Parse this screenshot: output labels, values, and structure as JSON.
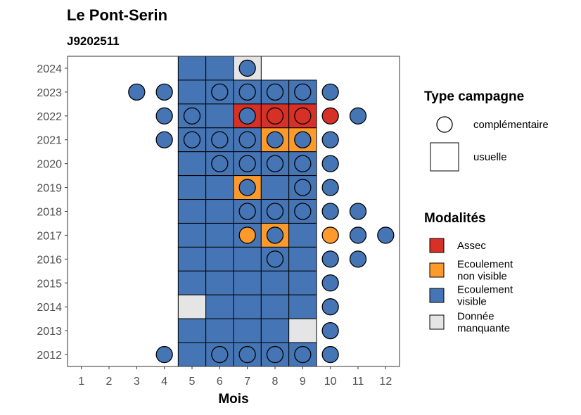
{
  "chart_data": {
    "type": "heatmap",
    "title": "Le Pont-Serin",
    "subtitle": "J9202511",
    "xlabel": "Mois",
    "ylabel": "",
    "x_ticks": [
      "1",
      "2",
      "3",
      "4",
      "5",
      "6",
      "7",
      "8",
      "9",
      "10",
      "11",
      "12"
    ],
    "y_ticks": [
      "2012",
      "2013",
      "2014",
      "2015",
      "2016",
      "2017",
      "2018",
      "2019",
      "2020",
      "2021",
      "2022",
      "2023",
      "2024"
    ],
    "xlim": [
      0.5,
      12.5
    ],
    "ylim": [
      2011.5,
      2024.5
    ],
    "grid": false,
    "colors": {
      "Assec": "#d73027",
      "Ecoulement non visible": "#fd9a2b",
      "Ecoulement visible": "#4575b4",
      "Donnée manquante": "#e5e5e5"
    },
    "legend": {
      "shape_title": "Type campagne",
      "shape_items": [
        {
          "label": "complémentaire",
          "shape": "circle"
        },
        {
          "label": "usuelle",
          "shape": "square"
        }
      ],
      "color_title": "Modalités",
      "color_items": [
        {
          "key": "Assec",
          "lines": [
            "Assec"
          ]
        },
        {
          "key": "Ecoulement non visible",
          "lines": [
            "Ecoulement",
            "non visible"
          ]
        },
        {
          "key": "Ecoulement visible",
          "lines": [
            "Ecoulement",
            "visible"
          ]
        },
        {
          "key": "Donnée manquante",
          "lines": [
            "Donnée",
            "manquante"
          ]
        }
      ],
      "position": "right"
    },
    "usuelle": [
      {
        "year": 2024,
        "values": {
          "5": "Ecoulement visible",
          "6": "Ecoulement visible",
          "7": "Donnée manquante"
        }
      },
      {
        "year": 2023,
        "values": {
          "5": "Ecoulement visible",
          "6": "Ecoulement visible",
          "7": "Ecoulement visible",
          "8": "Ecoulement visible",
          "9": "Ecoulement visible"
        }
      },
      {
        "year": 2022,
        "values": {
          "5": "Ecoulement visible",
          "6": "Ecoulement visible",
          "7": "Assec",
          "8": "Assec",
          "9": "Assec"
        }
      },
      {
        "year": 2021,
        "values": {
          "5": "Ecoulement visible",
          "6": "Ecoulement visible",
          "7": "Ecoulement visible",
          "8": "Ecoulement non visible",
          "9": "Ecoulement non visible"
        }
      },
      {
        "year": 2020,
        "values": {
          "5": "Ecoulement visible",
          "6": "Ecoulement visible",
          "7": "Ecoulement visible",
          "8": "Ecoulement visible",
          "9": "Ecoulement visible"
        }
      },
      {
        "year": 2019,
        "values": {
          "5": "Ecoulement visible",
          "6": "Ecoulement visible",
          "7": "Ecoulement non visible",
          "8": "Ecoulement visible",
          "9": "Ecoulement visible"
        }
      },
      {
        "year": 2018,
        "values": {
          "5": "Ecoulement visible",
          "6": "Ecoulement visible",
          "7": "Ecoulement visible",
          "8": "Ecoulement visible",
          "9": "Ecoulement visible"
        }
      },
      {
        "year": 2017,
        "values": {
          "5": "Ecoulement visible",
          "6": "Ecoulement visible",
          "7": "Ecoulement visible",
          "8": "Ecoulement non visible",
          "9": "Ecoulement visible"
        }
      },
      {
        "year": 2016,
        "values": {
          "5": "Ecoulement visible",
          "6": "Ecoulement visible",
          "7": "Ecoulement visible",
          "8": "Ecoulement visible",
          "9": "Ecoulement visible"
        }
      },
      {
        "year": 2015,
        "values": {
          "5": "Ecoulement visible",
          "6": "Ecoulement visible",
          "7": "Ecoulement visible",
          "8": "Ecoulement visible",
          "9": "Ecoulement visible"
        }
      },
      {
        "year": 2014,
        "values": {
          "5": "Donnée manquante",
          "6": "Ecoulement visible",
          "7": "Ecoulement visible",
          "8": "Ecoulement visible",
          "9": "Ecoulement visible"
        }
      },
      {
        "year": 2013,
        "values": {
          "5": "Ecoulement visible",
          "6": "Ecoulement visible",
          "7": "Ecoulement visible",
          "8": "Ecoulement visible",
          "9": "Donnée manquante"
        }
      },
      {
        "year": 2012,
        "values": {
          "5": "Ecoulement visible",
          "6": "Ecoulement visible",
          "7": "Ecoulement visible",
          "8": "Ecoulement visible",
          "9": "Ecoulement visible"
        }
      }
    ],
    "complementaire": [
      {
        "year": 2024,
        "values": {
          "7": "Ecoulement visible"
        }
      },
      {
        "year": 2023,
        "values": {
          "3": "Ecoulement visible",
          "4": "Ecoulement visible",
          "6": "Ecoulement visible",
          "7": "Ecoulement visible",
          "8": "Ecoulement visible",
          "9": "Ecoulement visible",
          "10": "Ecoulement visible"
        }
      },
      {
        "year": 2022,
        "values": {
          "4": "Ecoulement visible",
          "5": "Ecoulement visible",
          "7": "Ecoulement visible",
          "8": "Assec",
          "9": "Assec",
          "10": "Assec",
          "11": "Ecoulement visible"
        }
      },
      {
        "year": 2021,
        "values": {
          "4": "Ecoulement visible",
          "5": "Ecoulement visible",
          "6": "Ecoulement visible",
          "7": "Ecoulement visible",
          "8": "Ecoulement visible",
          "9": "Ecoulement visible",
          "10": "Ecoulement visible"
        }
      },
      {
        "year": 2020,
        "values": {
          "6": "Ecoulement visible",
          "7": "Ecoulement visible",
          "8": "Ecoulement visible",
          "9": "Ecoulement visible",
          "10": "Ecoulement visible"
        }
      },
      {
        "year": 2019,
        "values": {
          "7": "Ecoulement visible",
          "9": "Ecoulement visible",
          "10": "Ecoulement visible"
        }
      },
      {
        "year": 2018,
        "values": {
          "7": "Ecoulement visible",
          "8": "Ecoulement visible",
          "9": "Ecoulement visible",
          "10": "Ecoulement visible",
          "11": "Ecoulement visible"
        }
      },
      {
        "year": 2017,
        "values": {
          "7": "Ecoulement non visible",
          "8": "Ecoulement visible",
          "10": "Ecoulement non visible",
          "11": "Ecoulement visible",
          "12": "Ecoulement visible"
        }
      },
      {
        "year": 2016,
        "values": {
          "8": "Ecoulement visible",
          "10": "Ecoulement visible",
          "11": "Ecoulement visible"
        }
      },
      {
        "year": 2015,
        "values": {
          "10": "Ecoulement visible"
        }
      },
      {
        "year": 2014,
        "values": {
          "10": "Ecoulement visible"
        }
      },
      {
        "year": 2013,
        "values": {
          "10": "Ecoulement visible"
        }
      },
      {
        "year": 2012,
        "values": {
          "4": "Ecoulement visible",
          "6": "Ecoulement visible",
          "7": "Ecoulement visible",
          "8": "Ecoulement visible",
          "9": "Ecoulement visible",
          "10": "Ecoulement visible"
        }
      }
    ]
  }
}
